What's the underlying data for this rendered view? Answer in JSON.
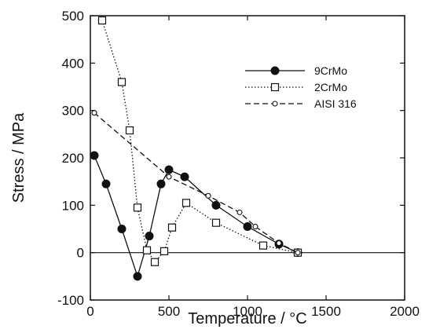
{
  "chart_data": {
    "type": "line",
    "title": "",
    "xlabel": "Temperature / °C",
    "ylabel": "Stress / MPa",
    "xlim": [
      0,
      2000
    ],
    "ylim": [
      -100,
      500
    ],
    "xticks": [
      0,
      500,
      1000,
      1500,
      2000
    ],
    "yticks": [
      -100,
      0,
      100,
      200,
      300,
      400,
      500
    ],
    "zero_line": true,
    "grid": false,
    "legend_position": "upper-right",
    "series": [
      {
        "name": "9CrMo",
        "marker": "filled-circle",
        "line": "solid",
        "x": [
          25,
          100,
          200,
          300,
          375,
          450,
          500,
          600,
          800,
          1000,
          1200,
          1320
        ],
        "y": [
          205,
          145,
          50,
          -50,
          35,
          145,
          175,
          160,
          100,
          55,
          18,
          0
        ]
      },
      {
        "name": "2CrMo",
        "marker": "open-square",
        "line": "dotted",
        "x": [
          75,
          200,
          250,
          300,
          360,
          410,
          470,
          520,
          610,
          800,
          1100,
          1320
        ],
        "y": [
          490,
          360,
          258,
          95,
          5,
          -20,
          3,
          53,
          105,
          63,
          15,
          0
        ]
      },
      {
        "name": "AISI 316",
        "marker": "open-circle",
        "line": "dashed",
        "x": [
          25,
          500,
          750,
          950,
          1050,
          1200,
          1320
        ],
        "y": [
          295,
          160,
          120,
          85,
          55,
          20,
          0
        ]
      }
    ]
  }
}
